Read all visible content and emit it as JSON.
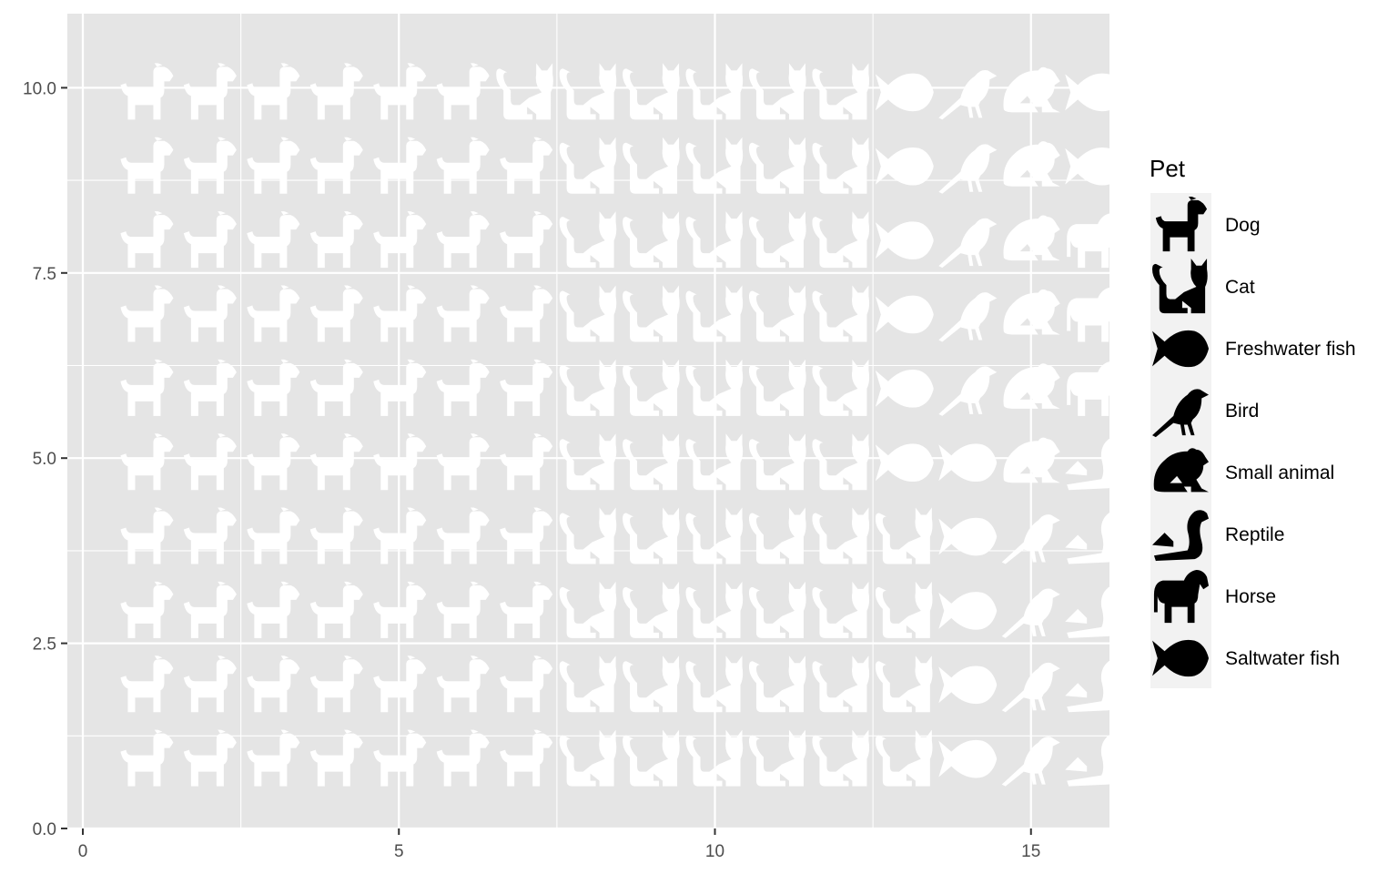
{
  "chart_data": {
    "type": "scatter",
    "subtype": "isotype-pictogram",
    "title": "",
    "xlabel": "",
    "ylabel": "",
    "xlim": [
      0,
      16
    ],
    "ylim": [
      0,
      11
    ],
    "x_ticks": [
      0,
      5,
      10,
      15
    ],
    "x_tick_labels": [
      "0",
      "5",
      "10",
      "15"
    ],
    "y_ticks": [
      0,
      2.5,
      5,
      7.5,
      10
    ],
    "y_tick_labels": [
      "0.0",
      "2.5",
      "5.0",
      "7.5",
      "10.0"
    ],
    "grid": true,
    "legend_position": "right",
    "legend_title": "Pet",
    "series": [
      {
        "name": "Dog",
        "icon": "dog-icon"
      },
      {
        "name": "Cat",
        "icon": "cat-icon"
      },
      {
        "name": "Freshwater fish",
        "icon": "fish-icon"
      },
      {
        "name": "Bird",
        "icon": "bird-icon"
      },
      {
        "name": "Small animal",
        "icon": "small-animal-icon"
      },
      {
        "name": "Reptile",
        "icon": "reptile-icon"
      },
      {
        "name": "Horse",
        "icon": "horse-icon"
      },
      {
        "name": "Saltwater fish",
        "icon": "fish-icon"
      }
    ],
    "rows": [
      {
        "y": 10,
        "pets": [
          "Dog",
          "Dog",
          "Dog",
          "Dog",
          "Dog",
          "Dog",
          "Cat",
          "Cat",
          "Cat",
          "Cat",
          "Cat",
          "Cat",
          "Freshwater fish",
          "Bird",
          "Small animal",
          "Saltwater fish"
        ]
      },
      {
        "y": 9,
        "pets": [
          "Dog",
          "Dog",
          "Dog",
          "Dog",
          "Dog",
          "Dog",
          "Dog",
          "Cat",
          "Cat",
          "Cat",
          "Cat",
          "Cat",
          "Freshwater fish",
          "Bird",
          "Small animal",
          "Saltwater fish"
        ]
      },
      {
        "y": 8,
        "pets": [
          "Dog",
          "Dog",
          "Dog",
          "Dog",
          "Dog",
          "Dog",
          "Dog",
          "Cat",
          "Cat",
          "Cat",
          "Cat",
          "Cat",
          "Freshwater fish",
          "Bird",
          "Small animal",
          "Horse"
        ]
      },
      {
        "y": 7,
        "pets": [
          "Dog",
          "Dog",
          "Dog",
          "Dog",
          "Dog",
          "Dog",
          "Dog",
          "Cat",
          "Cat",
          "Cat",
          "Cat",
          "Cat",
          "Freshwater fish",
          "Bird",
          "Small animal",
          "Horse"
        ]
      },
      {
        "y": 6,
        "pets": [
          "Dog",
          "Dog",
          "Dog",
          "Dog",
          "Dog",
          "Dog",
          "Dog",
          "Cat",
          "Cat",
          "Cat",
          "Cat",
          "Cat",
          "Freshwater fish",
          "Bird",
          "Small animal",
          "Horse"
        ]
      },
      {
        "y": 5,
        "pets": [
          "Dog",
          "Dog",
          "Dog",
          "Dog",
          "Dog",
          "Dog",
          "Dog",
          "Cat",
          "Cat",
          "Cat",
          "Cat",
          "Cat",
          "Freshwater fish",
          "Freshwater fish",
          "Small animal",
          "Reptile"
        ]
      },
      {
        "y": 4,
        "pets": [
          "Dog",
          "Dog",
          "Dog",
          "Dog",
          "Dog",
          "Dog",
          "Dog",
          "Cat",
          "Cat",
          "Cat",
          "Cat",
          "Cat",
          "Cat",
          "Freshwater fish",
          "Bird",
          "Reptile"
        ]
      },
      {
        "y": 3,
        "pets": [
          "Dog",
          "Dog",
          "Dog",
          "Dog",
          "Dog",
          "Dog",
          "Dog",
          "Cat",
          "Cat",
          "Cat",
          "Cat",
          "Cat",
          "Cat",
          "Freshwater fish",
          "Bird",
          "Reptile"
        ]
      },
      {
        "y": 2,
        "pets": [
          "Dog",
          "Dog",
          "Dog",
          "Dog",
          "Dog",
          "Dog",
          "Dog",
          "Cat",
          "Cat",
          "Cat",
          "Cat",
          "Cat",
          "Cat",
          "Freshwater fish",
          "Bird",
          "Reptile"
        ]
      },
      {
        "y": 1,
        "pets": [
          "Dog",
          "Dog",
          "Dog",
          "Dog",
          "Dog",
          "Dog",
          "Dog",
          "Cat",
          "Cat",
          "Cat",
          "Cat",
          "Cat",
          "Cat",
          "Freshwater fish",
          "Bird",
          "Reptile"
        ]
      }
    ],
    "colors": {
      "panel_background": "#e5e5e5",
      "grid_line": "#ffffff",
      "icon_fill": "#ffffff",
      "legend_icon": "#000000",
      "legend_key_background": "#f2f2f2",
      "axis_text": "#4d4d4d",
      "tick_mark": "#333333"
    }
  }
}
